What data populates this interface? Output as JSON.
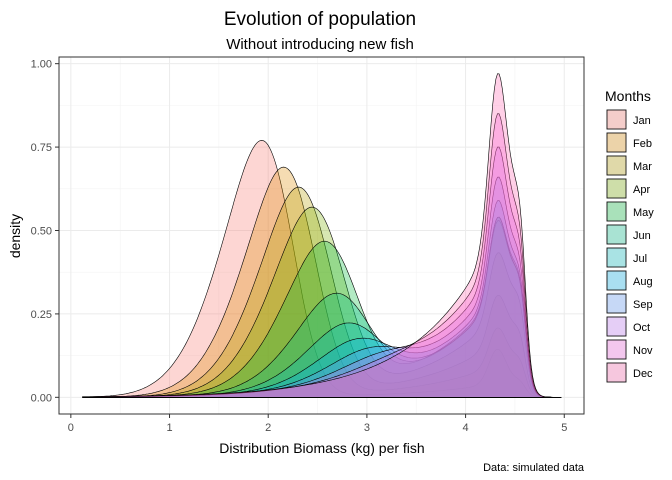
{
  "chart_data": {
    "type": "area",
    "title": "Evolution of population",
    "subtitle": "Without introducing new fish",
    "xlabel": "Distribution Biomass (kg) per fish",
    "ylabel": "density",
    "caption": "Data: simulated data",
    "xlim": [
      -0.12,
      5.2
    ],
    "ylim": [
      -0.05,
      1.02
    ],
    "x_ticks": [
      0,
      1,
      2,
      3,
      4,
      5
    ],
    "x_tick_labels": [
      "0",
      "1",
      "2",
      "3",
      "4",
      "5"
    ],
    "y_ticks": [
      0,
      0.25,
      0.5,
      0.75,
      1
    ],
    "y_tick_labels": [
      "0.00",
      "0.25",
      "0.50",
      "0.75",
      "1.00"
    ],
    "grid": true,
    "legend_title": "Months",
    "legend_position": "right",
    "series": [
      {
        "name": "Jan",
        "color": "#F8766D",
        "peak_x": 2.0,
        "peak_y": 0.77
      },
      {
        "name": "Feb",
        "color": "#DE8C00",
        "peak_x": 2.25,
        "peak_y": 0.69
      },
      {
        "name": "Mar",
        "color": "#B79F00",
        "peak_x": 2.5,
        "peak_y": 0.63
      },
      {
        "name": "Apr",
        "color": "#7CAE00",
        "peak_x": 2.7,
        "peak_y": 0.57
      },
      {
        "name": "May",
        "color": "#00BA38",
        "peak_x": 2.9,
        "peak_y": 0.54
      },
      {
        "name": "Jun",
        "color": "#00C08B",
        "peak_x": 3.1,
        "peak_y": 0.53
      },
      {
        "name": "Jul",
        "color": "#00BFC4",
        "peak_x": 3.35,
        "peak_y": 0.54
      },
      {
        "name": "Aug",
        "color": "#00B4F0",
        "peak_x": 4.3,
        "peak_y": 0.59
      },
      {
        "name": "Sep",
        "color": "#619CFF",
        "peak_x": 4.3,
        "peak_y": 0.66
      },
      {
        "name": "Oct",
        "color": "#C77CFF",
        "peak_x": 4.3,
        "peak_y": 0.75
      },
      {
        "name": "Nov",
        "color": "#F564E3",
        "peak_x": 4.3,
        "peak_y": 0.85
      },
      {
        "name": "Dec",
        "color": "#FF64B0",
        "peak_x": 4.3,
        "peak_y": 0.97
      }
    ]
  }
}
